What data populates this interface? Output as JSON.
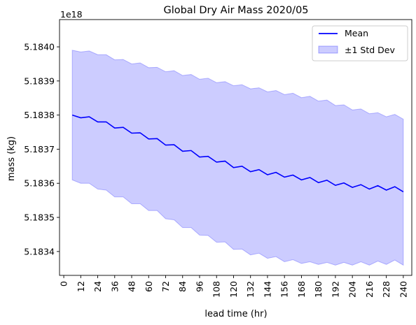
{
  "chart_data": {
    "type": "line",
    "title": "Global Dry Air Mass 2020/05",
    "xlabel": "lead time (hr)",
    "ylabel": "mass (kg)",
    "y_offset_label": "1e18",
    "xlim": [
      -3,
      246
    ],
    "ylim": [
      5.18333,
      5.18408
    ],
    "x_ticks": [
      0,
      12,
      24,
      36,
      48,
      60,
      72,
      84,
      96,
      108,
      120,
      132,
      144,
      156,
      168,
      180,
      192,
      204,
      216,
      228,
      240
    ],
    "y_ticks": [
      5.1834,
      5.1835,
      5.1836,
      5.1837,
      5.1838,
      5.1839,
      5.184
    ],
    "y_tick_labels": [
      "5.1834",
      "5.1835",
      "5.1836",
      "5.1837",
      "5.1838",
      "5.1839",
      "5.1840"
    ],
    "x": [
      6,
      12,
      18,
      24,
      30,
      36,
      42,
      48,
      54,
      60,
      66,
      72,
      78,
      84,
      90,
      96,
      102,
      108,
      114,
      120,
      126,
      132,
      138,
      144,
      150,
      156,
      162,
      168,
      174,
      180,
      186,
      192,
      198,
      204,
      210,
      216,
      222,
      228,
      234,
      240
    ],
    "series": [
      {
        "name": "Mean",
        "color": "#0000ff",
        "values": [
          5.1838,
          5.183792,
          5.183795,
          5.18378,
          5.18378,
          5.183762,
          5.183764,
          5.183747,
          5.183748,
          5.18373,
          5.183731,
          5.183712,
          5.183713,
          5.183694,
          5.183696,
          5.183677,
          5.183679,
          5.183662,
          5.183665,
          5.183646,
          5.18365,
          5.183634,
          5.18364,
          5.183625,
          5.183632,
          5.183618,
          5.183624,
          5.18361,
          5.183617,
          5.183602,
          5.183609,
          5.183594,
          5.183601,
          5.183588,
          5.183596,
          5.183583,
          5.183593,
          5.18358,
          5.18359,
          5.183575
        ]
      }
    ],
    "band": {
      "name": "±1 Std Dev",
      "color": "#0000ff",
      "upper": [
        5.18399,
        5.183985,
        5.183988,
        5.183977,
        5.183977,
        5.183962,
        5.183963,
        5.18395,
        5.183953,
        5.183939,
        5.18394,
        5.183927,
        5.18393,
        5.183916,
        5.183919,
        5.183905,
        5.183908,
        5.183895,
        5.183898,
        5.183886,
        5.183889,
        5.183877,
        5.18388,
        5.183868,
        5.183872,
        5.18386,
        5.183864,
        5.183851,
        5.183855,
        5.183841,
        5.183844,
        5.183828,
        5.18383,
        5.183815,
        5.183818,
        5.183804,
        5.183807,
        5.183795,
        5.183802,
        5.183788
      ],
      "lower": [
        5.18361,
        5.1836,
        5.1836,
        5.183583,
        5.18358,
        5.18356,
        5.18356,
        5.18354,
        5.18354,
        5.18352,
        5.18352,
        5.183496,
        5.183493,
        5.18347,
        5.18347,
        5.183448,
        5.183447,
        5.183427,
        5.183428,
        5.183406,
        5.183407,
        5.18339,
        5.183395,
        5.18338,
        5.183385,
        5.18337,
        5.183376,
        5.183365,
        5.18337,
        5.183362,
        5.183368,
        5.18336,
        5.183368,
        5.18336,
        5.18337,
        5.18336,
        5.183372,
        5.183362,
        5.183375,
        5.18336
      ]
    },
    "grid": false,
    "legend_position": "top-right"
  }
}
